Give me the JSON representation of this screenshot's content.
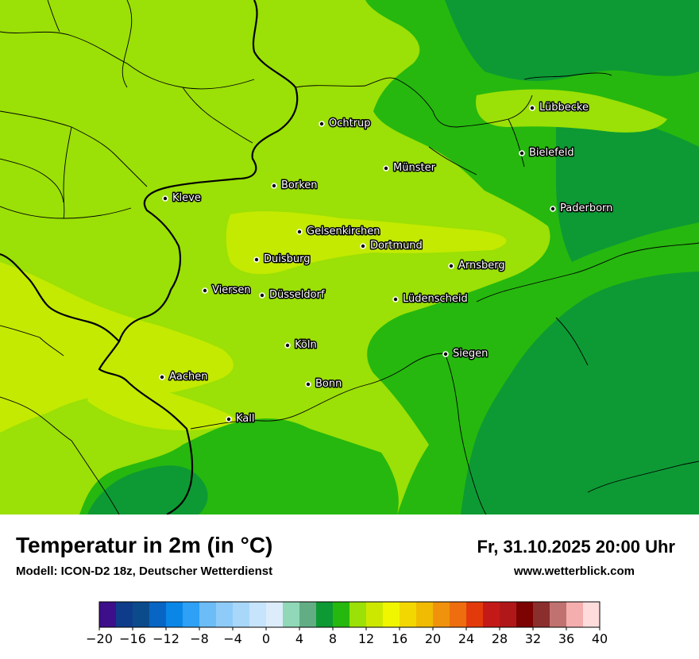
{
  "map": {
    "title": "Temperatur in 2m (in °C)",
    "model": "Modell: ICON-D2 18z, Deutscher Wetterdienst",
    "datetime": "Fr, 31.10.2025 20:00 Uhr",
    "website": "www.wetterblick.com"
  },
  "cities": [
    {
      "name": "Lübbecke"
    },
    {
      "name": "Ochtrup"
    },
    {
      "name": "Bielefeld"
    },
    {
      "name": "Münster"
    },
    {
      "name": "Borken"
    },
    {
      "name": "Kleve"
    },
    {
      "name": "Paderborn"
    },
    {
      "name": "Gelsenkirchen"
    },
    {
      "name": "Dortmund"
    },
    {
      "name": "Duisburg"
    },
    {
      "name": "Arnsberg"
    },
    {
      "name": "Viersen"
    },
    {
      "name": "Düsseldorf"
    },
    {
      "name": "Lüdenscheid"
    },
    {
      "name": "Köln"
    },
    {
      "name": "Siegen"
    },
    {
      "name": "Aachen"
    },
    {
      "name": "Bonn"
    },
    {
      "name": "Kall"
    }
  ],
  "colorbar": {
    "colors": [
      "#3d0f8a",
      "#0f3c8a",
      "#0b4b8c",
      "#0865c4",
      "#0a86e6",
      "#2ea0f5",
      "#6cbcf8",
      "#8fcbf9",
      "#a8d7fa",
      "#c6e4fb",
      "#dcecfb",
      "#90d8b7",
      "#63ad85",
      "#0d9a34",
      "#26b80e",
      "#9be006",
      "#cde800",
      "#f0f500",
      "#f2d800",
      "#f0bb02",
      "#f0920c",
      "#ee6d0f",
      "#e33a0c",
      "#c41a17",
      "#b01719",
      "#7d0202",
      "#8b2e2e",
      "#c07270",
      "#f4aeae",
      "#ffdcdc"
    ],
    "tick_labels": [
      "−20",
      "−16",
      "−12",
      "−8",
      "−4",
      "0",
      "4",
      "8",
      "12",
      "16",
      "20",
      "24",
      "28",
      "32",
      "36",
      "40"
    ]
  }
}
